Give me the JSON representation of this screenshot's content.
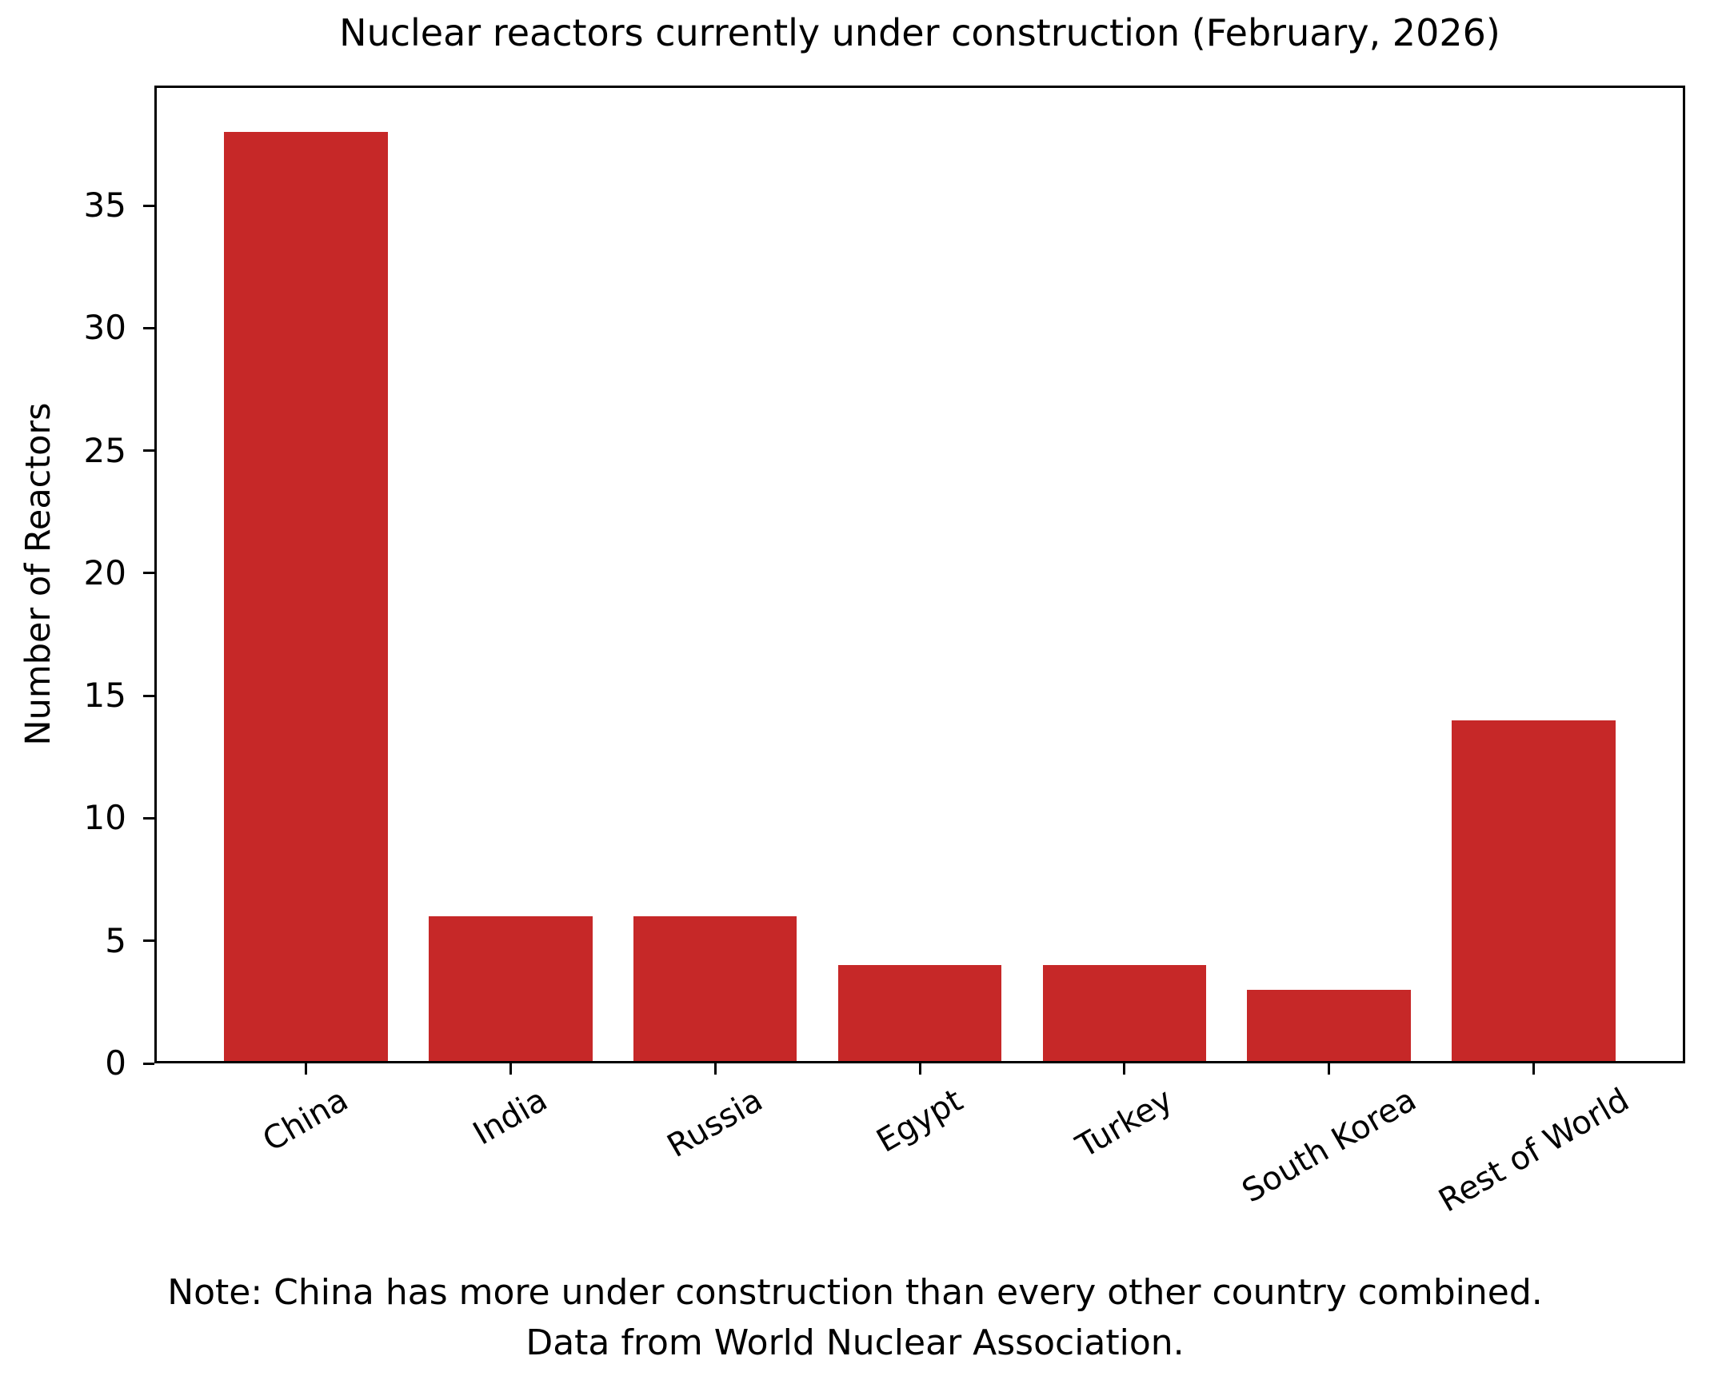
{
  "chart_data": {
    "type": "bar",
    "title": "Nuclear reactors currently under construction (February, 2026)",
    "categories": [
      "China",
      "India",
      "Russia",
      "Egypt",
      "Turkey",
      "South Korea",
      "Rest of World"
    ],
    "values": [
      38,
      6,
      6,
      4,
      4,
      3,
      14
    ],
    "xlabel": "",
    "ylabel": "Number of Reactors",
    "yticks": [
      0,
      5,
      10,
      15,
      20,
      25,
      30,
      35
    ],
    "ylim": [
      0,
      39.9
    ],
    "xlim": [
      -0.74,
      6.74
    ],
    "bar_width": 0.8,
    "bar_color": "#c62828",
    "grid": false,
    "legend": "none",
    "annotations": [
      "Note: China has more under construction than every other country combined.",
      "Data from World Nuclear Association."
    ]
  }
}
